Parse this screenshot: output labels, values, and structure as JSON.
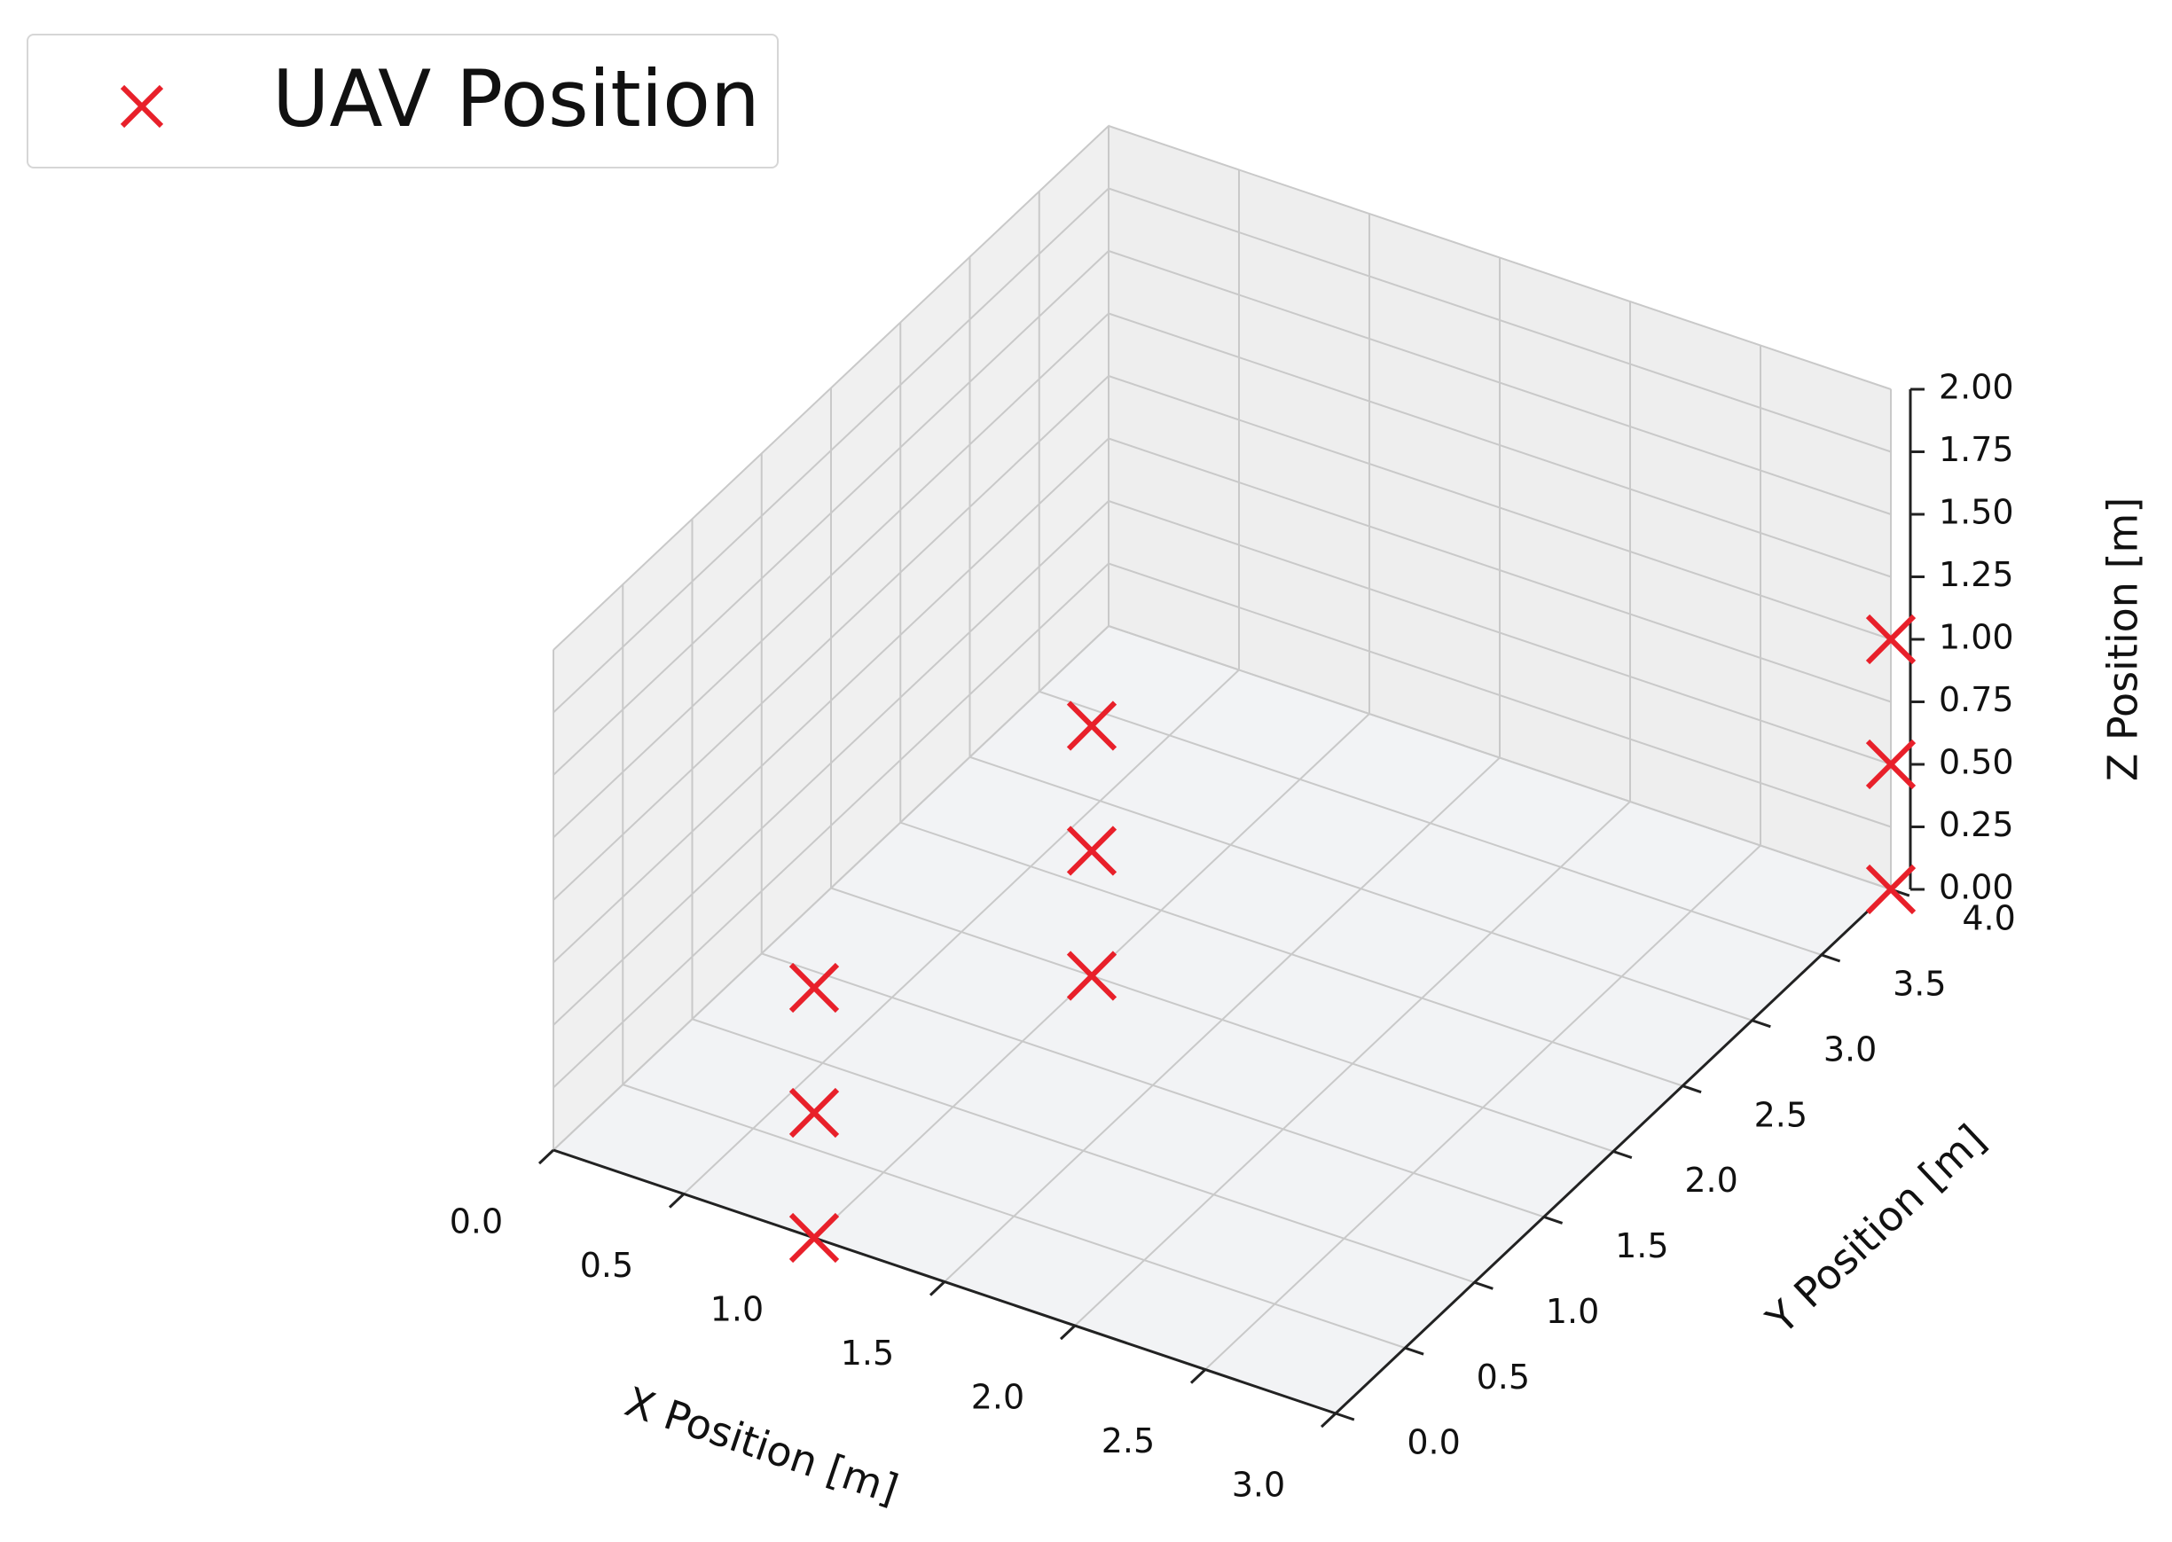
{
  "chart_data": {
    "type": "scatter",
    "projection": "3d",
    "legend_position": "top-left",
    "grid": true,
    "series": [
      {
        "name": "UAV Position",
        "marker": "x",
        "color": "#e8202a",
        "points": [
          {
            "x": 1.0,
            "y": 0.0,
            "z": 0.0
          },
          {
            "x": 1.0,
            "y": 0.0,
            "z": 0.5
          },
          {
            "x": 1.0,
            "y": 0.0,
            "z": 1.0
          },
          {
            "x": 1.0,
            "y": 2.0,
            "z": 0.0
          },
          {
            "x": 1.0,
            "y": 2.0,
            "z": 0.5
          },
          {
            "x": 1.0,
            "y": 2.0,
            "z": 1.0
          },
          {
            "x": 3.0,
            "y": 4.0,
            "z": 0.0
          },
          {
            "x": 3.0,
            "y": 4.0,
            "z": 0.5
          },
          {
            "x": 3.0,
            "y": 4.0,
            "z": 1.0
          }
        ]
      }
    ],
    "axes": {
      "x": {
        "label": "X Position [m]",
        "lim": [
          0.0,
          3.0
        ],
        "ticks": [
          "0.0",
          "0.5",
          "1.0",
          "1.5",
          "2.0",
          "2.5",
          "3.0"
        ]
      },
      "y": {
        "label": "Y Position [m]",
        "lim": [
          0.0,
          4.0
        ],
        "ticks": [
          "0.0",
          "0.5",
          "1.0",
          "1.5",
          "2.0",
          "2.5",
          "3.0",
          "3.5",
          "4.0"
        ]
      },
      "z": {
        "label": "Z Position [m]",
        "lim": [
          0.0,
          2.0
        ],
        "ticks": [
          "0.00",
          "0.25",
          "0.50",
          "0.75",
          "1.00",
          "1.25",
          "1.50",
          "1.75",
          "2.00"
        ]
      }
    }
  }
}
